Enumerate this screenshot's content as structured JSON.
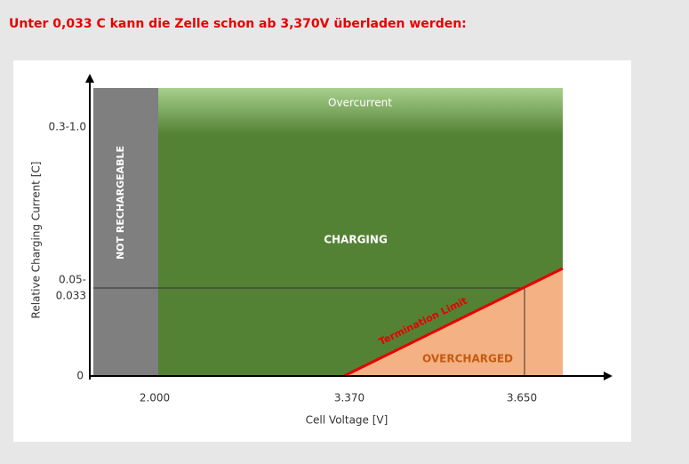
{
  "title": "Unter 0,033 C kann die Zelle schon ab 3,370V überladen werden:",
  "diagram": {
    "y_axis_title": "Relative Charging Current [C]",
    "x_axis_title": "Cell Voltage [V]",
    "y_labels": [
      "0.3-1.0",
      "0.05-",
      "0.033",
      "0"
    ],
    "x_labels": [
      "2.000",
      "3.370",
      "3.650"
    ],
    "regions": {
      "not_rechargeable": "NOT RECHARGEABLE",
      "overcurrent": "Overcurrent",
      "charging": "CHARGING",
      "overcharged": "OVERCHARGED"
    },
    "termination_limit": "Termination Limit"
  }
}
